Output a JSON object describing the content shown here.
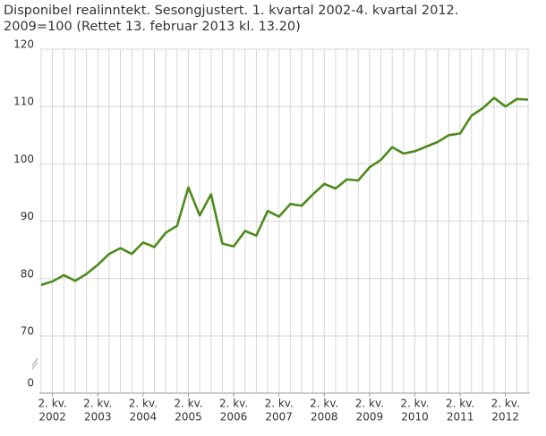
{
  "chart_data": {
    "type": "line",
    "title": [
      "Disponibel realinntekt. Sesongjustert. 1. kvartal 2002-4. kvartal 2012.",
      "2009=100 (Rettet 13. februar 2013 kl. 13.20)"
    ],
    "categories": [
      null,
      [
        "2. kv.",
        "2002"
      ],
      null,
      null,
      null,
      [
        "2. kv.",
        "2003"
      ],
      null,
      null,
      null,
      [
        "2. kv.",
        "2004"
      ],
      null,
      null,
      null,
      [
        "2. kv.",
        "2005"
      ],
      null,
      null,
      null,
      [
        "2. kv.",
        "2006"
      ],
      null,
      null,
      null,
      [
        "2. kv.",
        "2007"
      ],
      null,
      null,
      null,
      [
        "2. kv.",
        "2008"
      ],
      null,
      null,
      null,
      [
        "2. kv.",
        "2009"
      ],
      null,
      null,
      null,
      [
        "2. kv.",
        "2010"
      ],
      null,
      null,
      null,
      [
        "2. kv.",
        "2011"
      ],
      null,
      null,
      null,
      [
        "2. kv.",
        "2012"
      ],
      null,
      null
    ],
    "series": [
      {
        "color": "#4e8a1c",
        "values": [
          78.9,
          79.5,
          80.6,
          79.6,
          80.8,
          82.4,
          84.3,
          85.3,
          84.3,
          86.3,
          85.5,
          88.0,
          89.2,
          95.9,
          91.0,
          94.7,
          86.1,
          85.6,
          88.3,
          87.5,
          91.8,
          90.8,
          93.0,
          92.7,
          94.7,
          96.5,
          95.7,
          97.3,
          97.1,
          99.4,
          100.7,
          102.9,
          101.8,
          102.2,
          103.0,
          103.8,
          105.0,
          105.3,
          108.4,
          109.7,
          111.5,
          110.0,
          111.3,
          111.2
        ]
      }
    ],
    "ylim": [
      0,
      120
    ],
    "yticks": [
      0,
      70,
      80,
      90,
      100,
      110,
      120
    ],
    "axis_break": true,
    "grid": true
  }
}
